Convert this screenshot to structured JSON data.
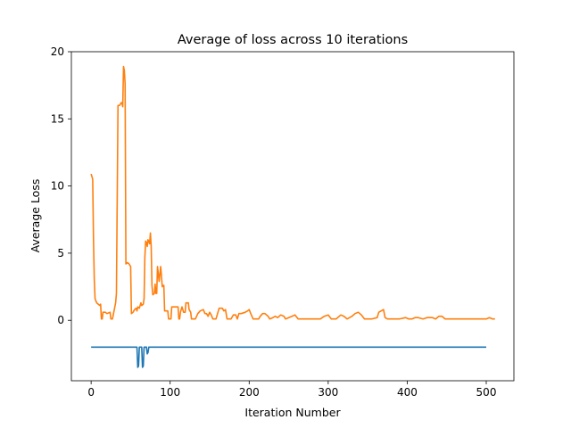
{
  "chart_data": {
    "type": "line",
    "title": "Average of loss across 10 iterations",
    "xlabel": "Iteration Number",
    "ylabel": "Average Loss",
    "xlim": [
      -25,
      535
    ],
    "ylim": [
      -4.5,
      20
    ],
    "xticks": [
      0,
      100,
      200,
      300,
      400,
      500
    ],
    "yticks": [
      0,
      5,
      10,
      15,
      20
    ],
    "grid": false,
    "legend": "none",
    "series": [
      {
        "color": "#1f77b4",
        "points": [
          [
            0,
            -2
          ],
          [
            58,
            -2
          ],
          [
            59,
            -3.5
          ],
          [
            60,
            -3.4
          ],
          [
            61,
            -2
          ],
          [
            64,
            -2
          ],
          [
            65,
            -3.5
          ],
          [
            66,
            -3.4
          ],
          [
            67,
            -2
          ],
          [
            70,
            -2
          ],
          [
            71,
            -2.5
          ],
          [
            72,
            -2.4
          ],
          [
            73,
            -2
          ],
          [
            500,
            -2
          ]
        ]
      },
      {
        "color": "#ff7f0e",
        "points": [
          [
            0,
            10.9
          ],
          [
            2,
            10.5
          ],
          [
            3,
            6
          ],
          [
            4,
            3
          ],
          [
            5,
            1.6
          ],
          [
            7,
            1.3
          ],
          [
            9,
            1.2
          ],
          [
            11,
            1.1
          ],
          [
            12,
            1.2
          ],
          [
            13,
            0.1
          ],
          [
            14,
            0.1
          ],
          [
            15,
            0.6
          ],
          [
            18,
            0.6
          ],
          [
            20,
            0.5
          ],
          [
            24,
            0.6
          ],
          [
            25,
            0.1
          ],
          [
            27,
            0.1
          ],
          [
            28,
            0.4
          ],
          [
            30,
            1.0
          ],
          [
            31,
            1.3
          ],
          [
            32,
            2
          ],
          [
            34,
            16
          ],
          [
            36,
            16
          ],
          [
            37,
            16.1
          ],
          [
            38,
            16.2
          ],
          [
            39,
            16.2
          ],
          [
            40,
            15.9
          ],
          [
            41,
            18.9
          ],
          [
            42,
            18.6
          ],
          [
            43,
            17.6
          ],
          [
            44,
            4.2
          ],
          [
            46,
            4.3
          ],
          [
            48,
            4.2
          ],
          [
            50,
            4.0
          ],
          [
            51,
            0.5
          ],
          [
            53,
            0.6
          ],
          [
            55,
            0.8
          ],
          [
            57,
            0.9
          ],
          [
            58,
            0.7
          ],
          [
            59,
            1.0
          ],
          [
            61,
            0.9
          ],
          [
            63,
            1.3
          ],
          [
            64,
            1.1
          ],
          [
            66,
            1.2
          ],
          [
            67,
            1.6
          ],
          [
            68,
            4.7
          ],
          [
            69,
            5.9
          ],
          [
            70,
            5.8
          ],
          [
            71,
            5.5
          ],
          [
            72,
            6.0
          ],
          [
            73,
            5.9
          ],
          [
            74,
            5.7
          ],
          [
            75,
            6.5
          ],
          [
            76,
            5.5
          ],
          [
            77,
            2.6
          ],
          [
            78,
            1.9
          ],
          [
            80,
            2.0
          ],
          [
            81,
            2.7
          ],
          [
            82,
            2.0
          ],
          [
            83,
            2.0
          ],
          [
            84,
            4.0
          ],
          [
            85,
            3.5
          ],
          [
            86,
            2.9
          ],
          [
            87,
            3.4
          ],
          [
            88,
            4.0
          ],
          [
            89,
            3.3
          ],
          [
            90,
            2.5
          ],
          [
            91,
            2.6
          ],
          [
            92,
            2.6
          ],
          [
            93,
            0.7
          ],
          [
            95,
            0.7
          ],
          [
            97,
            0.7
          ],
          [
            98,
            0.1
          ],
          [
            101,
            0.1
          ],
          [
            102,
            1.0
          ],
          [
            105,
            1.0
          ],
          [
            108,
            1.0
          ],
          [
            110,
            1.0
          ],
          [
            111,
            0.1
          ],
          [
            112,
            0.1
          ],
          [
            113,
            0.6
          ],
          [
            115,
            1.0
          ],
          [
            117,
            0.6
          ],
          [
            119,
            0.6
          ],
          [
            120,
            1.3
          ],
          [
            123,
            1.3
          ],
          [
            124,
            0.8
          ],
          [
            126,
            0.6
          ],
          [
            127,
            0.1
          ],
          [
            132,
            0.1
          ],
          [
            135,
            0.5
          ],
          [
            138,
            0.7
          ],
          [
            142,
            0.8
          ],
          [
            144,
            0.5
          ],
          [
            146,
            0.5
          ],
          [
            148,
            0.3
          ],
          [
            150,
            0.6
          ],
          [
            152,
            0.4
          ],
          [
            154,
            0.1
          ],
          [
            158,
            0.1
          ],
          [
            160,
            0.5
          ],
          [
            162,
            0.9
          ],
          [
            166,
            0.9
          ],
          [
            168,
            0.7
          ],
          [
            170,
            0.8
          ],
          [
            172,
            0.1
          ],
          [
            177,
            0.1
          ],
          [
            180,
            0.4
          ],
          [
            183,
            0.4
          ],
          [
            185,
            0.1
          ],
          [
            187,
            0.5
          ],
          [
            190,
            0.5
          ],
          [
            195,
            0.6
          ],
          [
            198,
            0.7
          ],
          [
            200,
            0.8
          ],
          [
            202,
            0.5
          ],
          [
            205,
            0.1
          ],
          [
            212,
            0.1
          ],
          [
            214,
            0.3
          ],
          [
            217,
            0.5
          ],
          [
            220,
            0.5
          ],
          [
            224,
            0.3
          ],
          [
            226,
            0.1
          ],
          [
            230,
            0.2
          ],
          [
            233,
            0.3
          ],
          [
            236,
            0.2
          ],
          [
            240,
            0.4
          ],
          [
            244,
            0.3
          ],
          [
            246,
            0.1
          ],
          [
            250,
            0.2
          ],
          [
            254,
            0.3
          ],
          [
            258,
            0.4
          ],
          [
            262,
            0.1
          ],
          [
            270,
            0.1
          ],
          [
            280,
            0.1
          ],
          [
            290,
            0.1
          ],
          [
            295,
            0.3
          ],
          [
            300,
            0.4
          ],
          [
            304,
            0.1
          ],
          [
            310,
            0.1
          ],
          [
            316,
            0.4
          ],
          [
            320,
            0.3
          ],
          [
            324,
            0.1
          ],
          [
            330,
            0.3
          ],
          [
            334,
            0.5
          ],
          [
            338,
            0.6
          ],
          [
            342,
            0.4
          ],
          [
            346,
            0.1
          ],
          [
            355,
            0.1
          ],
          [
            362,
            0.2
          ],
          [
            364,
            0.6
          ],
          [
            367,
            0.7
          ],
          [
            370,
            0.8
          ],
          [
            372,
            0.2
          ],
          [
            375,
            0.1
          ],
          [
            385,
            0.1
          ],
          [
            390,
            0.1
          ],
          [
            398,
            0.2
          ],
          [
            402,
            0.1
          ],
          [
            406,
            0.1
          ],
          [
            410,
            0.2
          ],
          [
            414,
            0.2
          ],
          [
            420,
            0.1
          ],
          [
            425,
            0.2
          ],
          [
            432,
            0.2
          ],
          [
            436,
            0.1
          ],
          [
            440,
            0.3
          ],
          [
            444,
            0.3
          ],
          [
            448,
            0.1
          ],
          [
            470,
            0.1
          ],
          [
            500,
            0.1
          ],
          [
            504,
            0.2
          ],
          [
            508,
            0.1
          ],
          [
            511,
            0.1
          ]
        ]
      }
    ]
  }
}
